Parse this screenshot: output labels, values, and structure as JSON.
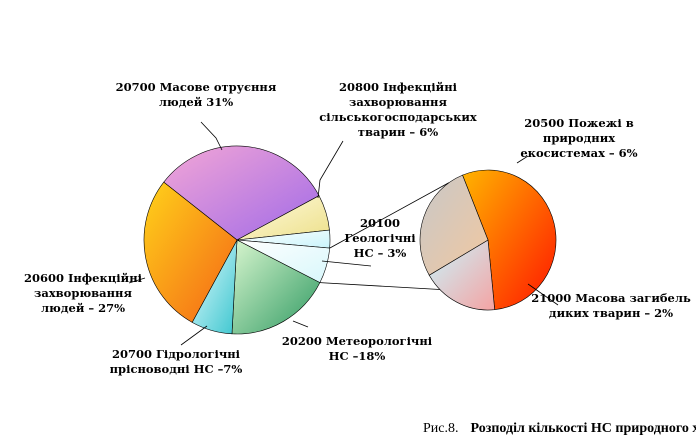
{
  "chart_data": {
    "type": "pie",
    "main_pie": {
      "slices": [
        {
          "label_lines": [
            "20700 Масове отруєння",
            "людей 31%"
          ],
          "value": 31,
          "color_a": "#f3a6d6",
          "color_b": "#a06ae8"
        },
        {
          "label_lines": [
            "20800 Інфекційні",
            "захворювання",
            "сільськогосподарських",
            "тварин – 6%"
          ],
          "value": 6,
          "color_a": "#fffbe0",
          "color_b": "#ede08a"
        },
        {
          "label_lines": [
            "20100",
            "Геологічні",
            "НС – 3%"
          ],
          "value": 3,
          "color_a": "#ffffff",
          "color_b": "#c9f4fb"
        },
        {
          "label_lines": [
            "20500 Пожежі в",
            "природних",
            "екосистемах – 6%"
          ],
          "value": 6,
          "color_a": "#ffffff",
          "color_b": "#d8f7fb"
        },
        {
          "label_lines": [
            "20200 Метеорологічні",
            "НС –18%"
          ],
          "value": 18,
          "color_a": "#d9f6cf",
          "color_b": "#2f9a62"
        },
        {
          "label_lines": [
            "20700 Гідрологічні",
            "прісноводні НС –7%"
          ],
          "value": 7,
          "color_a": "#e6fcff",
          "color_b": "#3cc6cf"
        },
        {
          "label_lines": [
            "20600 Інфекційні",
            "захворювання",
            "людей – 27%"
          ],
          "value": 27,
          "color_a": "#ffd21a",
          "color_b": "#f46416"
        }
      ]
    },
    "secondary_pie": {
      "slices": [
        {
          "value": 6,
          "color_a": "#ffb400",
          "color_b": "#ff1500"
        },
        {
          "label_lines": [
            "21000 Масова загибель",
            "диких тварин – 2%"
          ],
          "value": 2,
          "color_a": "#c9f4fb",
          "color_b": "#f4a3a3"
        },
        {
          "value": 3,
          "color_a": "#c8c8c8",
          "color_b": "#f2c8a0"
        }
      ]
    }
  },
  "caption": {
    "prefix": "Рис.8.",
    "text": "Розподіл кількості НС природного характеру за видами"
  }
}
